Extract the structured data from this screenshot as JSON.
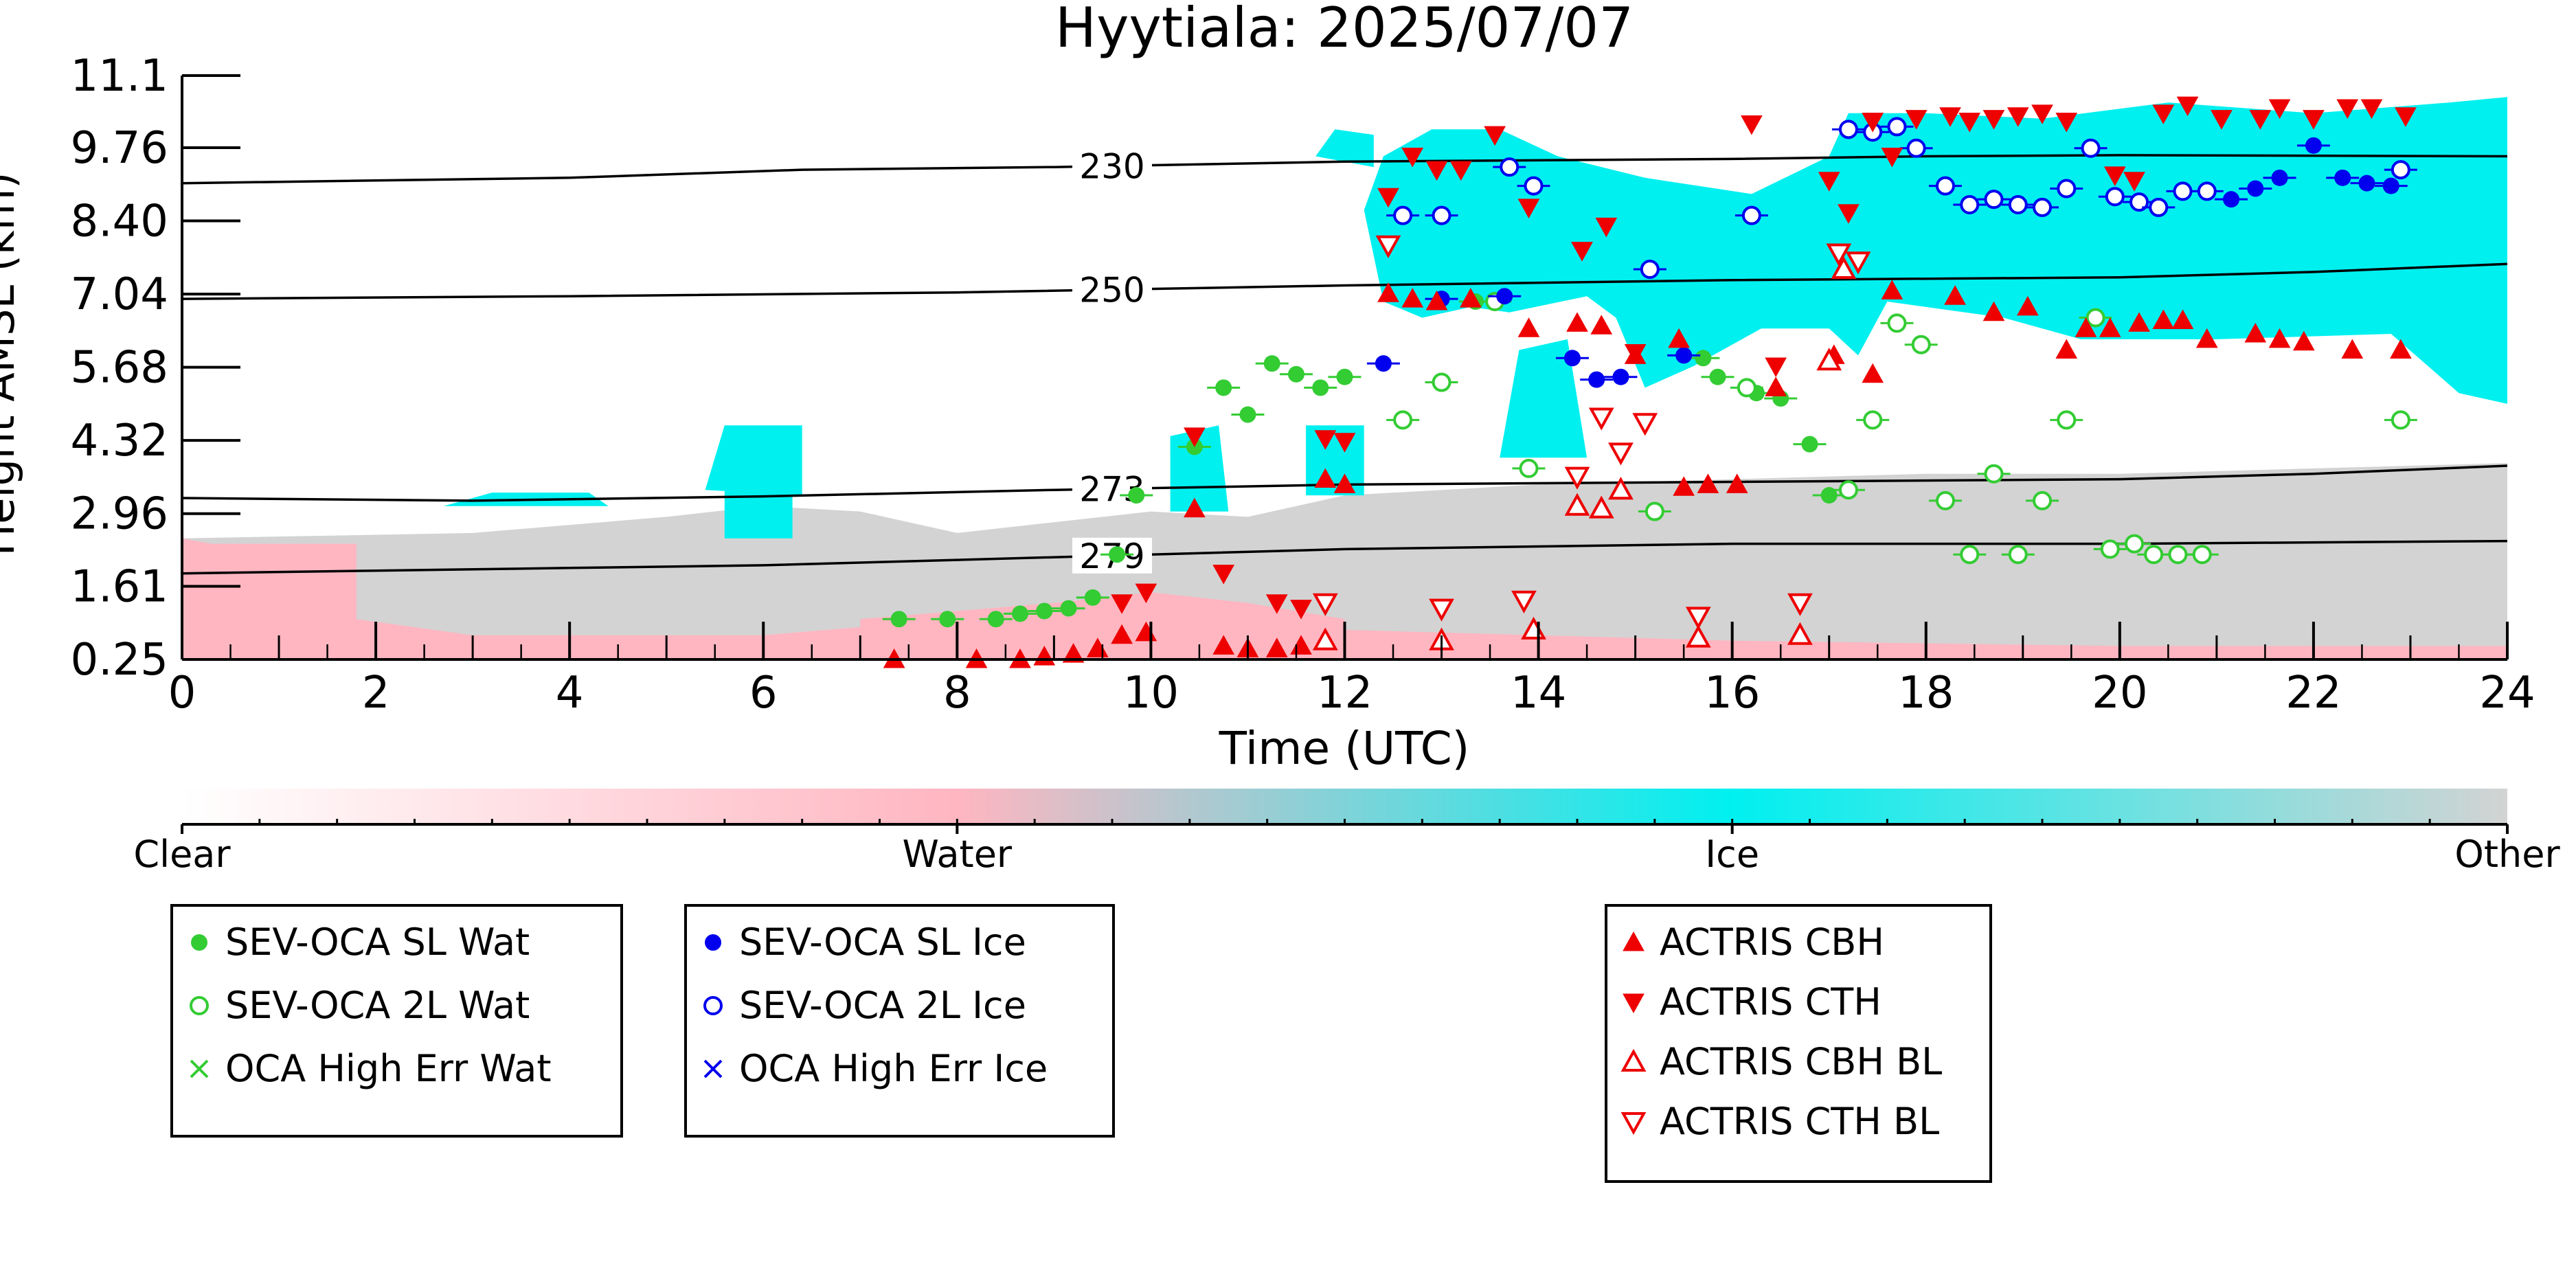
{
  "chart_data": {
    "type": "scatter",
    "title": "Hyytiala: 2025/07/07",
    "xlabel": "Time (UTC)",
    "ylabel": "Height AMSL (km)",
    "xlim": [
      0,
      24
    ],
    "ylim": [
      0.25,
      11.1
    ],
    "x_ticks": [
      "0",
      "2",
      "4",
      "6",
      "8",
      "10",
      "12",
      "14",
      "16",
      "18",
      "20",
      "22",
      "24"
    ],
    "y_ticks": [
      "0.25",
      "1.61",
      "2.96",
      "4.32",
      "5.68",
      "7.04",
      "8.40",
      "9.76",
      "11.1"
    ],
    "grid": false,
    "background": "cloud phase (Clear, Water, Ice, Other) as function of time and height",
    "colorbar": {
      "labels": [
        "Clear",
        "Water",
        "Ice",
        "Other"
      ],
      "colors": {
        "Clear": "#ffffff",
        "Water": "#ffb6c1",
        "Ice": "#00f0f0",
        "Other": "#d3d3d3"
      }
    },
    "temperature_contours": [
      {
        "label": "230",
        "label_x": 9.6,
        "points": [
          [
            0,
            9.1
          ],
          [
            4,
            9.2
          ],
          [
            6.4,
            9.35
          ],
          [
            9,
            9.4
          ],
          [
            12,
            9.5
          ],
          [
            16,
            9.55
          ],
          [
            18,
            9.6
          ],
          [
            20,
            9.62
          ],
          [
            24,
            9.6
          ]
        ]
      },
      {
        "label": "250",
        "label_x": 9.6,
        "points": [
          [
            0,
            6.95
          ],
          [
            4,
            7.0
          ],
          [
            8,
            7.07
          ],
          [
            12,
            7.2
          ],
          [
            16,
            7.3
          ],
          [
            20,
            7.35
          ],
          [
            22,
            7.45
          ],
          [
            24,
            7.6
          ]
        ]
      },
      {
        "label": "273",
        "label_x": 9.6,
        "points": [
          [
            0,
            3.25
          ],
          [
            3,
            3.2
          ],
          [
            6,
            3.28
          ],
          [
            9,
            3.4
          ],
          [
            12,
            3.5
          ],
          [
            16,
            3.55
          ],
          [
            20,
            3.6
          ],
          [
            22,
            3.7
          ],
          [
            24,
            3.85
          ]
        ]
      },
      {
        "label": "279",
        "label_x": 9.6,
        "points": [
          [
            0,
            1.85
          ],
          [
            2,
            1.9
          ],
          [
            4,
            1.95
          ],
          [
            6,
            2.0
          ],
          [
            8,
            2.1
          ],
          [
            10,
            2.2
          ],
          [
            12,
            2.3
          ],
          [
            14,
            2.35
          ],
          [
            16,
            2.4
          ],
          [
            20,
            2.4
          ],
          [
            24,
            2.45
          ]
        ]
      }
    ],
    "series": [
      {
        "name": "SEV-OCA SL Wat",
        "color": "#33cc33",
        "marker": "filled-circle",
        "points": [
          [
            7.4,
            1.0
          ],
          [
            7.9,
            1.0
          ],
          [
            8.4,
            1.0
          ],
          [
            8.65,
            1.1
          ],
          [
            8.9,
            1.15
          ],
          [
            9.15,
            1.2
          ],
          [
            9.4,
            1.4
          ],
          [
            9.65,
            2.2
          ],
          [
            9.85,
            3.3
          ],
          [
            10.45,
            4.2
          ],
          [
            10.75,
            5.3
          ],
          [
            11.0,
            4.8
          ],
          [
            11.25,
            5.75
          ],
          [
            11.5,
            5.55
          ],
          [
            11.75,
            5.3
          ],
          [
            12.0,
            5.5
          ],
          [
            13.35,
            6.9
          ],
          [
            15.7,
            5.85
          ],
          [
            15.85,
            5.5
          ],
          [
            16.25,
            5.2
          ],
          [
            16.5,
            5.1
          ],
          [
            16.8,
            4.25
          ],
          [
            17.0,
            3.3
          ]
        ]
      },
      {
        "name": "SEV-OCA 2L Wat",
        "color": "#33cc33",
        "marker": "open-circle",
        "points": [
          [
            12.6,
            4.7
          ],
          [
            13.0,
            5.4
          ],
          [
            13.55,
            6.9
          ],
          [
            13.9,
            3.8
          ],
          [
            15.2,
            3.0
          ],
          [
            16.15,
            5.3
          ],
          [
            17.2,
            3.4
          ],
          [
            17.45,
            4.7
          ],
          [
            17.7,
            6.5
          ],
          [
            17.95,
            6.1
          ],
          [
            18.2,
            3.2
          ],
          [
            18.45,
            2.2
          ],
          [
            18.7,
            3.7
          ],
          [
            18.95,
            2.2
          ],
          [
            19.2,
            3.2
          ],
          [
            19.45,
            4.7
          ],
          [
            19.75,
            6.6
          ],
          [
            19.9,
            2.3
          ],
          [
            20.15,
            2.4
          ],
          [
            20.35,
            2.2
          ],
          [
            20.6,
            2.2
          ],
          [
            20.85,
            2.2
          ],
          [
            22.9,
            4.7
          ]
        ]
      },
      {
        "name": "OCA High Err Wat",
        "color": "#33cc33",
        "marker": "x",
        "points": []
      },
      {
        "name": "SEV-OCA SL Ice",
        "color": "#0000ee",
        "marker": "filled-circle",
        "points": [
          [
            12.4,
            5.75
          ],
          [
            13.0,
            6.95
          ],
          [
            13.65,
            7.0
          ],
          [
            14.35,
            5.85
          ],
          [
            14.6,
            5.45
          ],
          [
            14.85,
            5.5
          ],
          [
            15.5,
            5.9
          ],
          [
            21.15,
            8.8
          ],
          [
            21.4,
            9.0
          ],
          [
            21.65,
            9.2
          ],
          [
            22.0,
            9.8
          ],
          [
            22.3,
            9.2
          ],
          [
            22.55,
            9.1
          ],
          [
            22.8,
            9.05
          ]
        ]
      },
      {
        "name": "SEV-OCA 2L Ice",
        "color": "#0000ee",
        "marker": "open-circle",
        "points": [
          [
            12.6,
            8.5
          ],
          [
            13.0,
            8.5
          ],
          [
            13.7,
            9.4
          ],
          [
            13.95,
            9.05
          ],
          [
            15.15,
            7.5
          ],
          [
            16.2,
            8.5
          ],
          [
            17.2,
            10.1
          ],
          [
            17.45,
            10.05
          ],
          [
            17.7,
            10.15
          ],
          [
            17.9,
            9.75
          ],
          [
            18.2,
            9.05
          ],
          [
            18.45,
            8.7
          ],
          [
            18.7,
            8.8
          ],
          [
            18.95,
            8.7
          ],
          [
            19.2,
            8.65
          ],
          [
            19.45,
            9.0
          ],
          [
            19.7,
            9.75
          ],
          [
            19.95,
            8.85
          ],
          [
            20.2,
            8.75
          ],
          [
            20.4,
            8.65
          ],
          [
            20.65,
            8.95
          ],
          [
            20.9,
            8.95
          ],
          [
            22.9,
            9.35
          ]
        ]
      },
      {
        "name": "OCA High Err Ice",
        "color": "#0000ee",
        "marker": "x",
        "points": []
      },
      {
        "name": "ACTRIS CBH",
        "color": "#ee0000",
        "marker": "filled-triangle-up",
        "points": [
          [
            7.35,
            0.25
          ],
          [
            8.2,
            0.25
          ],
          [
            8.65,
            0.25
          ],
          [
            8.9,
            0.3
          ],
          [
            9.2,
            0.35
          ],
          [
            9.45,
            0.45
          ],
          [
            9.7,
            0.7
          ],
          [
            9.95,
            0.75
          ],
          [
            10.45,
            3.05
          ],
          [
            10.75,
            0.5
          ],
          [
            11.0,
            0.45
          ],
          [
            11.3,
            0.45
          ],
          [
            11.55,
            0.5
          ],
          [
            11.8,
            3.6
          ],
          [
            12.0,
            3.5
          ],
          [
            12.45,
            7.05
          ],
          [
            12.7,
            6.95
          ],
          [
            12.95,
            6.9
          ],
          [
            13.3,
            6.95
          ],
          [
            13.9,
            6.4
          ],
          [
            14.4,
            6.5
          ],
          [
            14.65,
            6.45
          ],
          [
            15.0,
            5.9
          ],
          [
            15.45,
            6.2
          ],
          [
            15.5,
            3.45
          ],
          [
            15.75,
            3.5
          ],
          [
            16.05,
            3.5
          ],
          [
            16.45,
            5.3
          ],
          [
            17.05,
            5.9
          ],
          [
            17.45,
            5.55
          ],
          [
            17.65,
            7.1
          ],
          [
            18.3,
            7.0
          ],
          [
            18.7,
            6.7
          ],
          [
            19.05,
            6.8
          ],
          [
            19.45,
            6.0
          ],
          [
            19.65,
            6.4
          ],
          [
            19.9,
            6.4
          ],
          [
            20.2,
            6.5
          ],
          [
            20.45,
            6.55
          ],
          [
            20.65,
            6.55
          ],
          [
            20.9,
            6.2
          ],
          [
            21.4,
            6.3
          ],
          [
            21.65,
            6.2
          ],
          [
            21.9,
            6.15
          ],
          [
            22.4,
            6.0
          ],
          [
            22.9,
            6.0
          ]
        ]
      },
      {
        "name": "ACTRIS CTH",
        "color": "#ee0000",
        "marker": "filled-triangle-down",
        "points": [
          [
            9.7,
            1.3
          ],
          [
            9.95,
            1.5
          ],
          [
            10.45,
            4.4
          ],
          [
            10.75,
            1.85
          ],
          [
            11.3,
            1.3
          ],
          [
            11.55,
            1.2
          ],
          [
            11.8,
            4.35
          ],
          [
            12.0,
            4.3
          ],
          [
            12.45,
            8.85
          ],
          [
            12.7,
            9.6
          ],
          [
            12.95,
            9.35
          ],
          [
            13.2,
            9.35
          ],
          [
            13.55,
            10.0
          ],
          [
            13.9,
            8.65
          ],
          [
            14.45,
            7.85
          ],
          [
            14.7,
            8.3
          ],
          [
            15.0,
            5.95
          ],
          [
            16.2,
            10.2
          ],
          [
            16.45,
            5.7
          ],
          [
            17.0,
            9.15
          ],
          [
            17.2,
            8.55
          ],
          [
            17.45,
            10.25
          ],
          [
            17.65,
            9.6
          ],
          [
            17.9,
            10.3
          ],
          [
            18.25,
            10.35
          ],
          [
            18.45,
            10.25
          ],
          [
            18.7,
            10.3
          ],
          [
            18.95,
            10.35
          ],
          [
            19.2,
            10.4
          ],
          [
            19.45,
            10.25
          ],
          [
            19.95,
            9.25
          ],
          [
            20.15,
            9.15
          ],
          [
            20.45,
            10.4
          ],
          [
            20.7,
            10.55
          ],
          [
            21.05,
            10.3
          ],
          [
            21.45,
            10.3
          ],
          [
            21.65,
            10.5
          ],
          [
            22.0,
            10.3
          ],
          [
            22.35,
            10.5
          ],
          [
            22.6,
            10.5
          ],
          [
            22.95,
            10.35
          ]
        ]
      },
      {
        "name": "ACTRIS CBH BL",
        "color": "#ee0000",
        "marker": "open-triangle-up",
        "points": [
          [
            11.8,
            0.6
          ],
          [
            13.0,
            0.6
          ],
          [
            13.95,
            0.8
          ],
          [
            14.4,
            3.1
          ],
          [
            14.65,
            3.05
          ],
          [
            14.85,
            3.4
          ],
          [
            15.65,
            0.65
          ],
          [
            16.7,
            0.7
          ],
          [
            17.0,
            5.8
          ],
          [
            17.15,
            7.5
          ]
        ]
      },
      {
        "name": "ACTRIS CTH BL",
        "color": "#ee0000",
        "marker": "open-triangle-down",
        "points": [
          [
            11.8,
            1.3
          ],
          [
            12.45,
            7.95
          ],
          [
            13.0,
            1.2
          ],
          [
            13.85,
            1.35
          ],
          [
            14.4,
            3.65
          ],
          [
            14.65,
            4.75
          ],
          [
            14.85,
            4.1
          ],
          [
            15.1,
            4.65
          ],
          [
            15.65,
            1.05
          ],
          [
            16.7,
            1.3
          ],
          [
            17.1,
            7.8
          ],
          [
            17.3,
            7.65
          ]
        ]
      }
    ],
    "legends": [
      [
        "SEV-OCA SL Wat",
        "SEV-OCA 2L Wat",
        "OCA High Err Wat"
      ],
      [
        "SEV-OCA SL Ice",
        "SEV-OCA 2L Ice",
        "OCA High Err Ice"
      ],
      [
        "ACTRIS CBH",
        "ACTRIS CTH",
        "ACTRIS CBH BL",
        "ACTRIS CTH BL"
      ]
    ]
  }
}
